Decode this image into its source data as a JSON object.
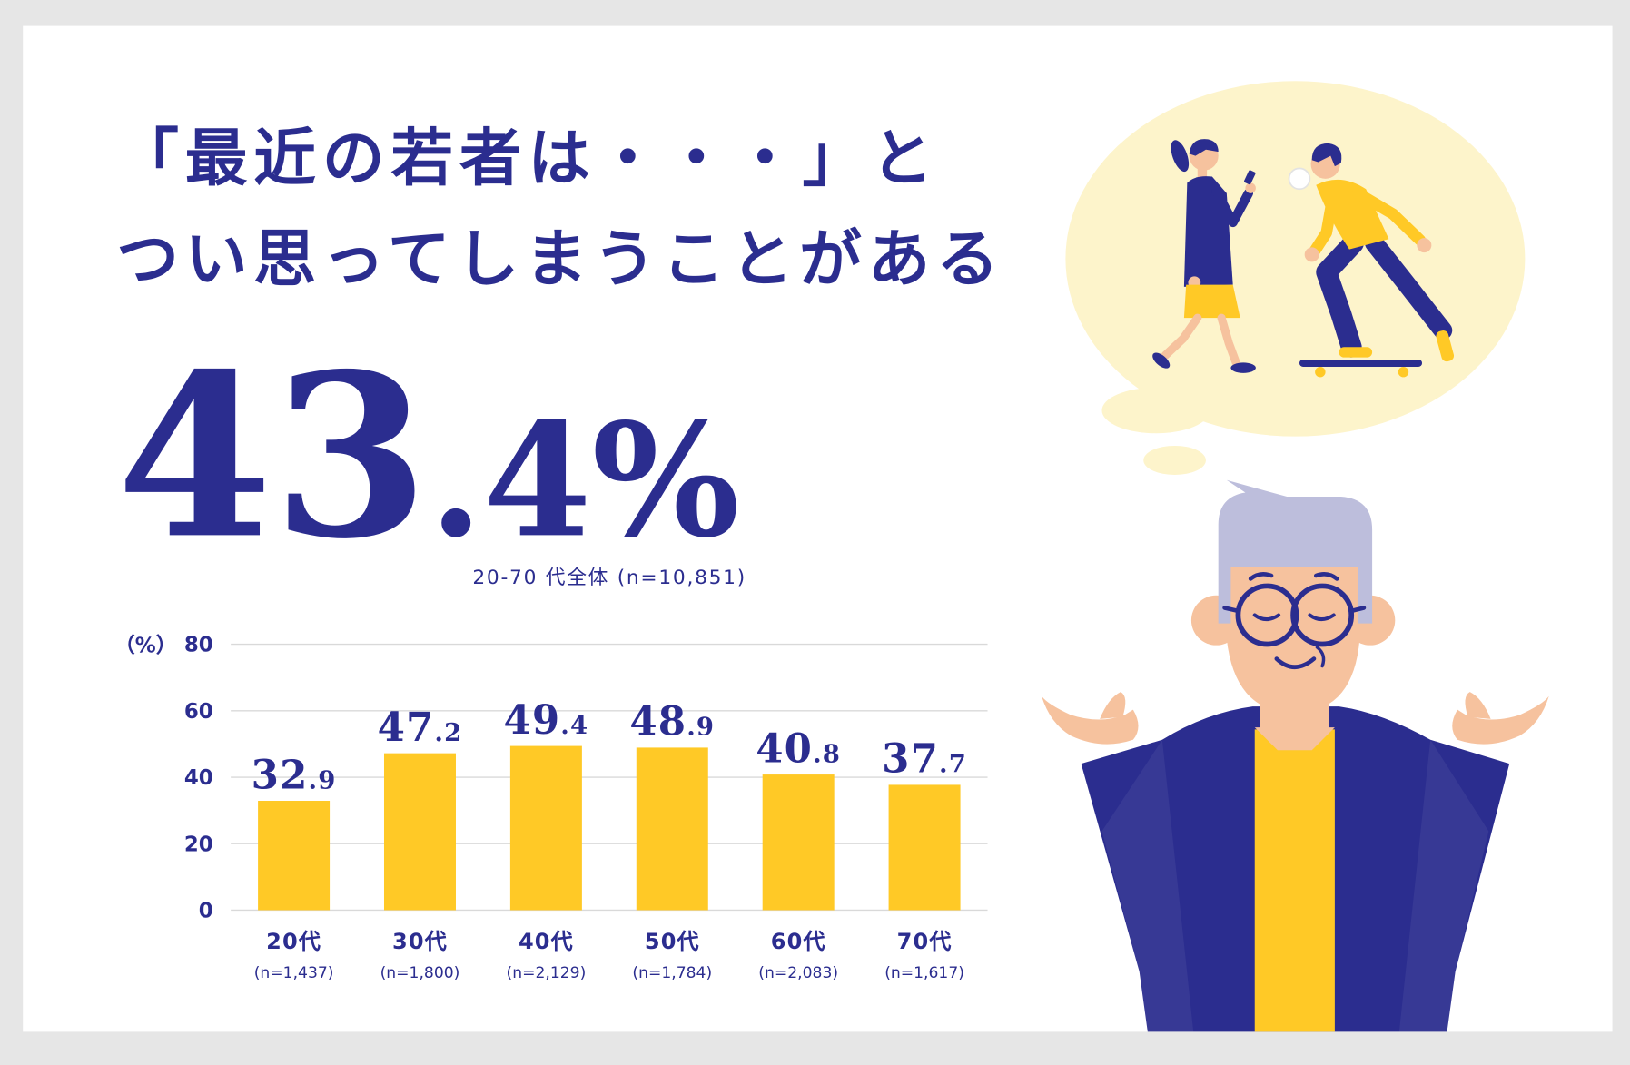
{
  "colors": {
    "navy": "#2b2d8f",
    "yellow": "#ffc926",
    "bubble": "#fdf4cb",
    "hair": "#bdbedc",
    "skin": "#f6c29e",
    "frame": "#e6e6e6"
  },
  "title": {
    "line1": "「最近の若者は・・・」と",
    "line2": "つい思ってしまうことがある"
  },
  "headline": {
    "integer": "43",
    "decimal": ".4",
    "unit": "%",
    "note": "20-70 代全体 (n=10,851)"
  },
  "chart_data": {
    "type": "bar",
    "categories": [
      "20代",
      "30代",
      "40代",
      "50代",
      "60代",
      "70代"
    ],
    "sample_sizes": [
      "(n=1,437)",
      "(n=1,800)",
      "(n=2,129)",
      "(n=1,784)",
      "(n=2,083)",
      "(n=1,617)"
    ],
    "values": [
      32.9,
      47.2,
      49.4,
      48.9,
      40.8,
      37.7
    ],
    "ylabel": "（%）",
    "ylim": [
      0,
      80
    ],
    "yticks": [
      0,
      20,
      40,
      60,
      80
    ],
    "grid": true,
    "bar_color": "#ffc926"
  }
}
